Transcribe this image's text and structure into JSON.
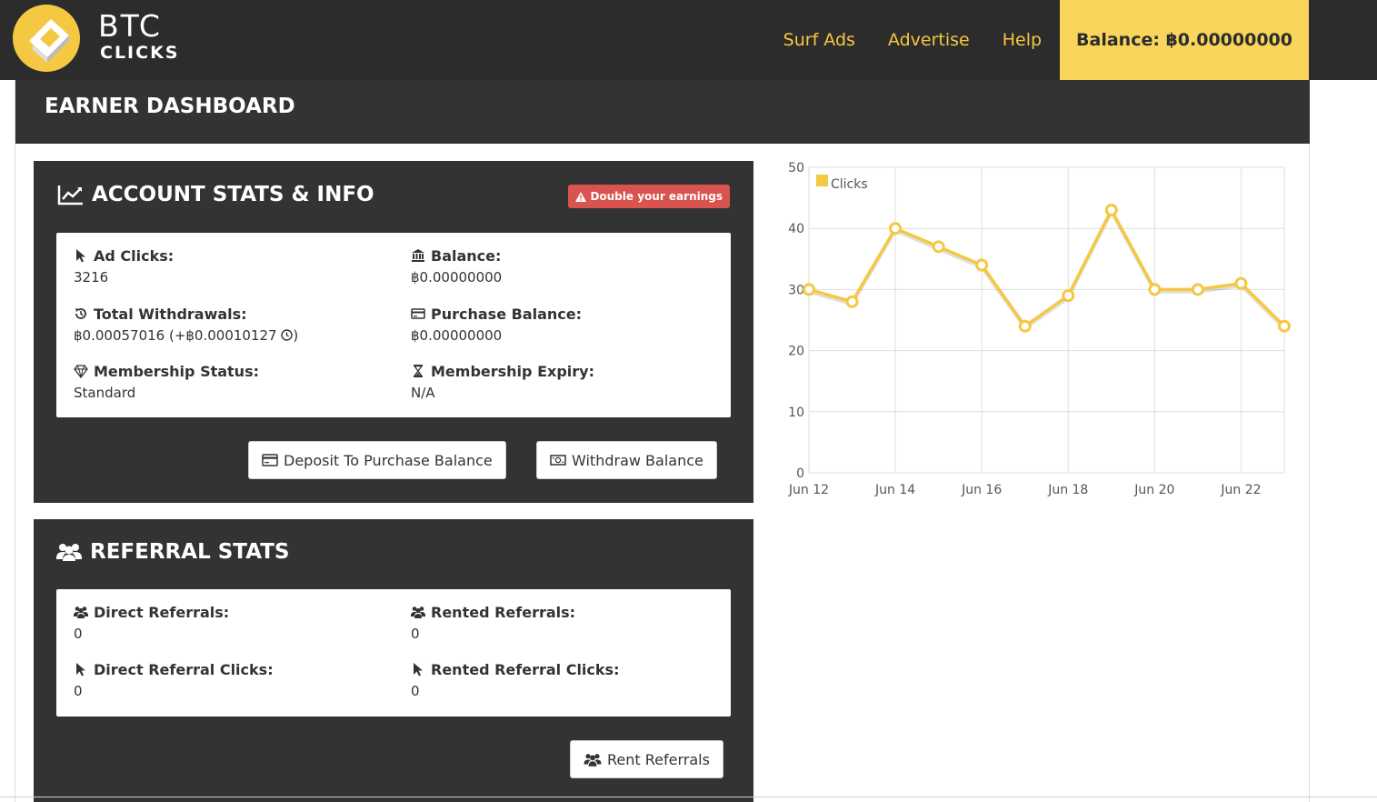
{
  "brand": {
    "name_line1": "BTC",
    "name_line2": "CLICKS"
  },
  "nav": {
    "links": [
      "Surf Ads",
      "Advertise",
      "Help"
    ],
    "balance_label": "Balance: ฿0.00000000"
  },
  "page": {
    "title": "EARNER DASHBOARD"
  },
  "account": {
    "title": "ACCOUNT STATS & INFO",
    "promo": "Double your earnings",
    "stats": {
      "ad_clicks_label": "Ad Clicks:",
      "ad_clicks_value": "3216",
      "balance_label": "Balance:",
      "balance_value": "฿0.00000000",
      "withdrawals_label": "Total Withdrawals:",
      "withdrawals_value": "฿0.00057016 (+฿0.00010127",
      "purchase_label": "Purchase Balance:",
      "purchase_value": "฿0.00000000",
      "membership_label": "Membership Status:",
      "membership_value": "Standard",
      "expiry_label": "Membership Expiry:",
      "expiry_value": "N/A"
    },
    "buttons": {
      "deposit": "Deposit To Purchase Balance",
      "withdraw": "Withdraw Balance"
    }
  },
  "referral": {
    "title": "REFERRAL STATS",
    "stats": {
      "direct_label": "Direct Referrals:",
      "direct_value": "0",
      "rented_label": "Rented Referrals:",
      "rented_value": "0",
      "direct_clicks_label": "Direct Referral Clicks:",
      "direct_clicks_value": "0",
      "rented_clicks_label": "Rented Referral Clicks:",
      "rented_clicks_value": "0"
    },
    "buttons": {
      "rent": "Rent Referrals"
    }
  },
  "colors": {
    "accent": "#f5c842",
    "dark": "#333333",
    "danger": "#d9534f"
  },
  "chart_data": {
    "type": "line",
    "x": [
      "Jun 12",
      "Jun 13",
      "Jun 14",
      "Jun 15",
      "Jun 16",
      "Jun 17",
      "Jun 18",
      "Jun 19",
      "Jun 20",
      "Jun 21",
      "Jun 22",
      "Jun 23"
    ],
    "xticks": [
      "Jun 12",
      "Jun 14",
      "Jun 16",
      "Jun 18",
      "Jun 20",
      "Jun 22"
    ],
    "yticks": [
      0,
      10,
      20,
      30,
      40,
      50
    ],
    "series": [
      {
        "name": "Clicks",
        "values": [
          30,
          28,
          40,
          37,
          34,
          24,
          29,
          43,
          30,
          30,
          31,
          24
        ],
        "color": "#f5c842"
      }
    ],
    "ylim": [
      0,
      50
    ],
    "grid": true,
    "legend": "top-left"
  }
}
